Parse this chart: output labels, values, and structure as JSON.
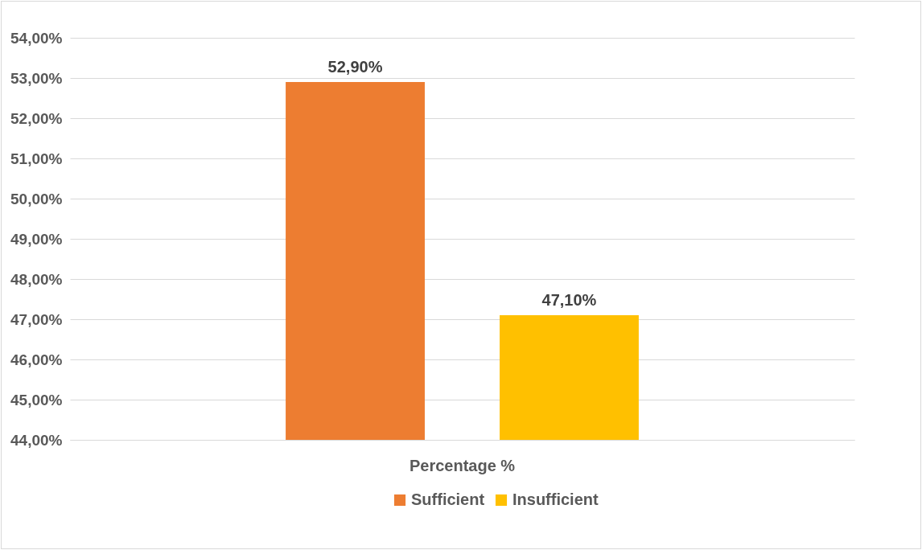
{
  "chart_data": {
    "type": "bar",
    "categories": [
      "Percentage %"
    ],
    "series": [
      {
        "name": "Sufficient",
        "color": "#ed7d31",
        "values": [
          52.9
        ],
        "value_labels": [
          "52,90%"
        ]
      },
      {
        "name": "Insufficient",
        "color": "#ffc000",
        "values": [
          47.1
        ],
        "value_labels": [
          "47,10%"
        ]
      }
    ],
    "ylim": [
      44,
      54
    ],
    "yticks": [
      {
        "value": 44,
        "label": "44,00%"
      },
      {
        "value": 45,
        "label": "45,00%"
      },
      {
        "value": 46,
        "label": "46,00%"
      },
      {
        "value": 47,
        "label": "47,00%"
      },
      {
        "value": 48,
        "label": "48,00%"
      },
      {
        "value": 49,
        "label": "49,00%"
      },
      {
        "value": 50,
        "label": "50,00%"
      },
      {
        "value": 51,
        "label": "51,00%"
      },
      {
        "value": 52,
        "label": "52,00%"
      },
      {
        "value": 53,
        "label": "53,00%"
      },
      {
        "value": 54,
        "label": "54,00%"
      }
    ],
    "grid": "y",
    "legend": "bottom"
  }
}
